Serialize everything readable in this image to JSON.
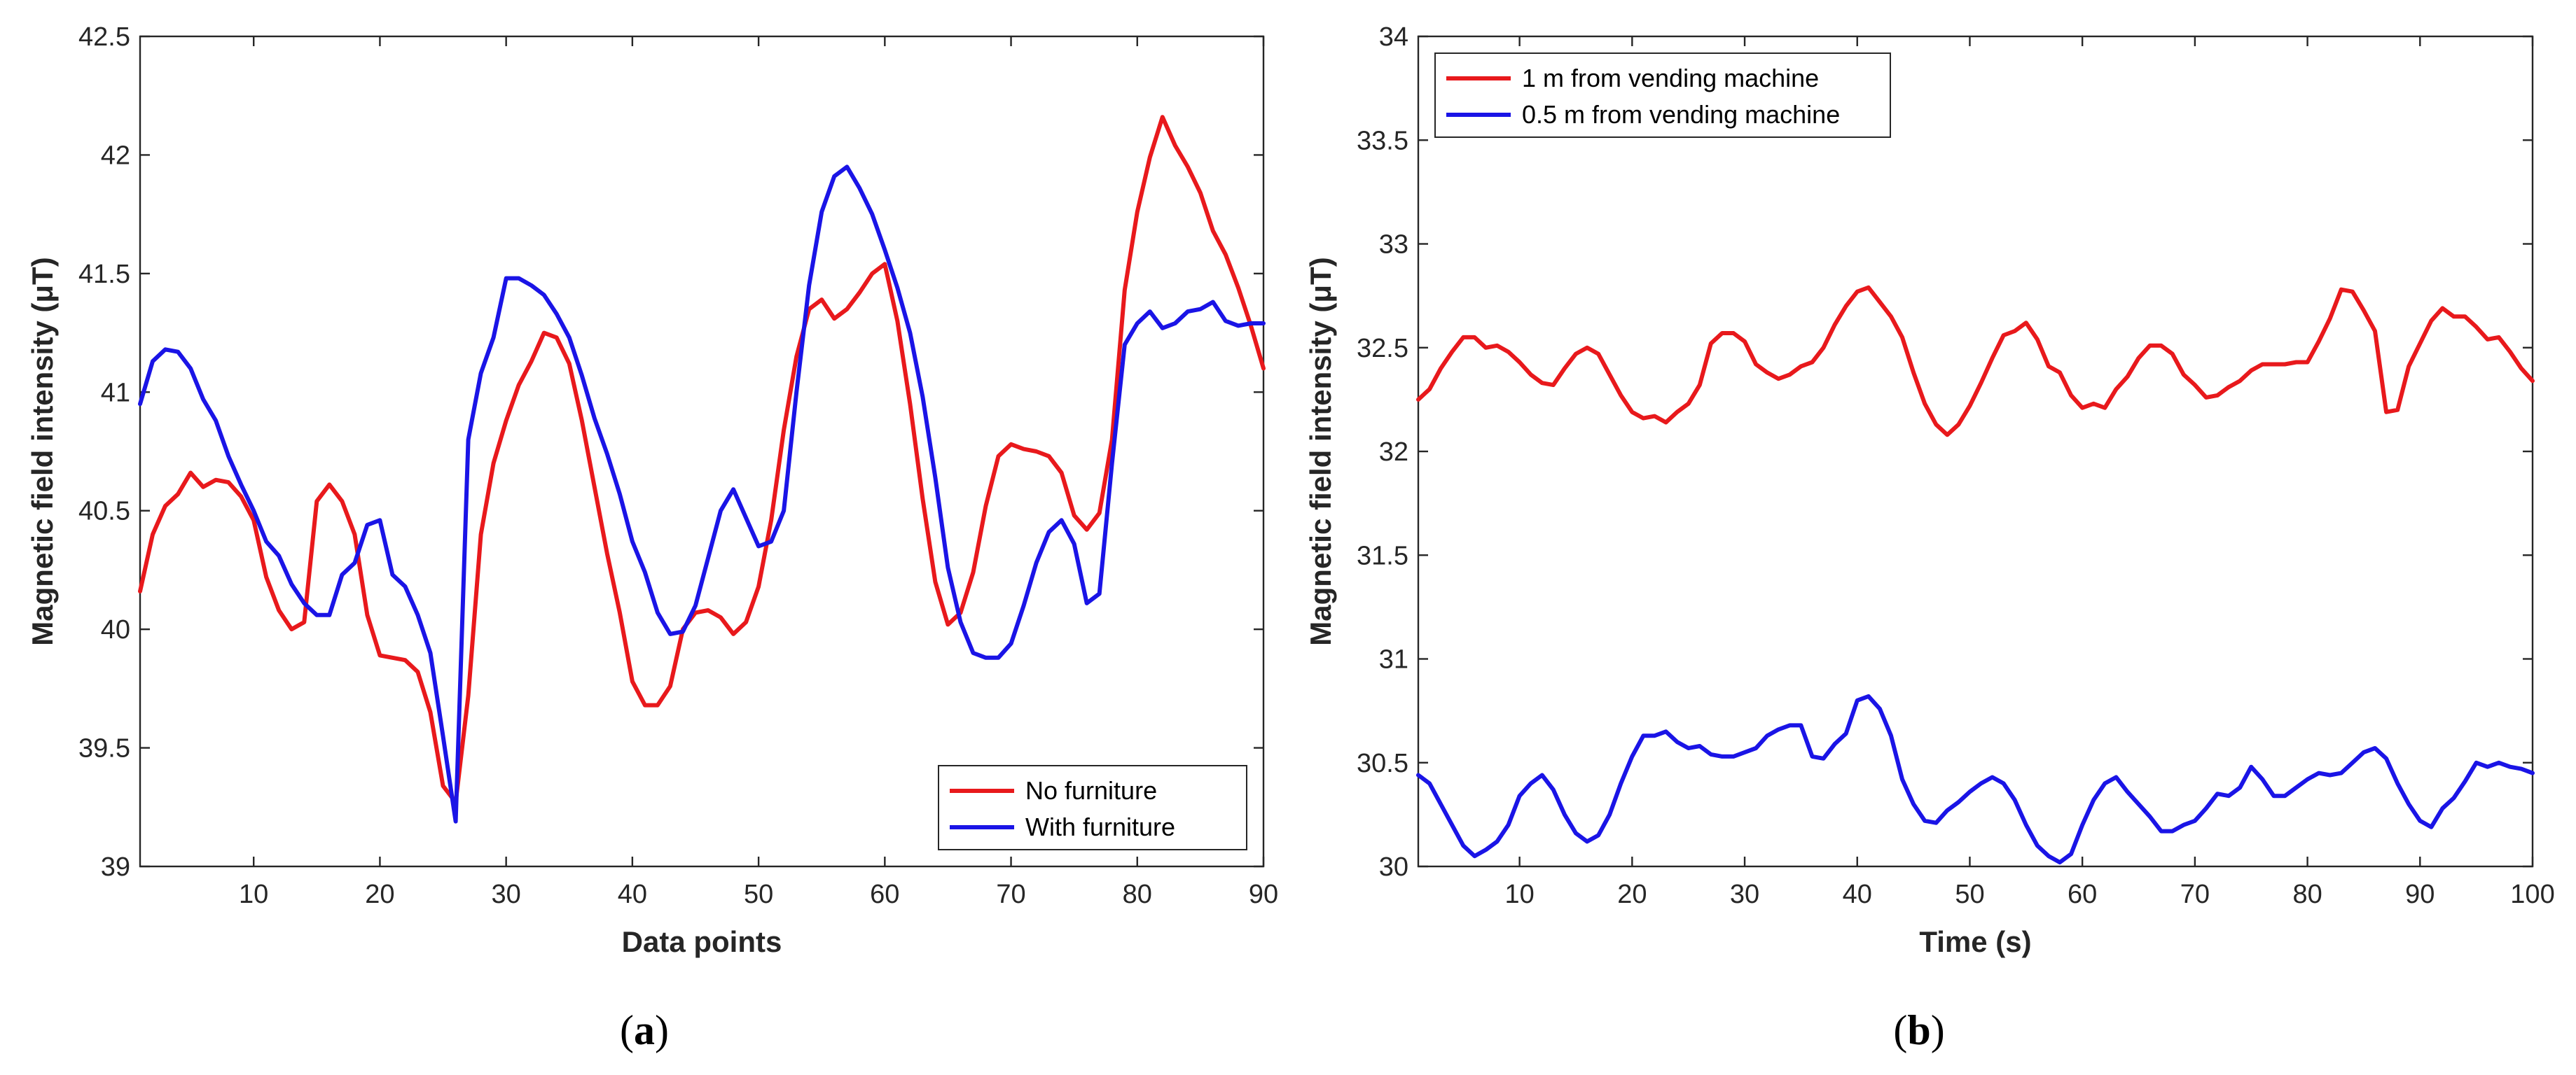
{
  "chart_data": [
    {
      "type": "line",
      "panel_caption": "(a)",
      "caption_open": "(",
      "caption_letter": "a",
      "caption_close": ")",
      "xlabel": "Data points",
      "ylabel": "Magnetic field intensity (μT)",
      "xlim": [
        1,
        90
      ],
      "ylim": [
        39,
        42.5
      ],
      "xticks": [
        10,
        20,
        30,
        40,
        50,
        60,
        70,
        80,
        90
      ],
      "yticks": [
        39,
        39.5,
        40,
        40.5,
        41,
        41.5,
        42,
        42.5
      ],
      "legend_position": "bottom-right",
      "series": [
        {
          "name": "No furniture",
          "color": "#e8191c",
          "x": [
            1,
            2,
            3,
            4,
            5,
            6,
            7,
            8,
            9,
            10,
            11,
            12,
            13,
            14,
            15,
            16,
            17,
            18,
            19,
            20,
            21,
            22,
            23,
            24,
            25,
            26,
            27,
            28,
            29,
            30,
            31,
            32,
            33,
            34,
            35,
            36,
            37,
            38,
            39,
            40,
            41,
            42,
            43,
            44,
            45,
            46,
            47,
            48,
            49,
            50,
            51,
            52,
            53,
            54,
            55,
            56,
            57,
            58,
            59,
            60,
            61,
            62,
            63,
            64,
            65,
            66,
            67,
            68,
            69,
            70,
            71,
            72,
            73,
            74,
            75,
            76,
            77,
            78,
            79,
            80,
            81,
            82,
            83,
            84,
            85,
            86,
            87,
            88,
            89,
            90
          ],
          "values": [
            40.16,
            40.4,
            40.52,
            40.57,
            40.66,
            40.6,
            40.63,
            40.62,
            40.56,
            40.46,
            40.22,
            40.08,
            40,
            40.03,
            40.54,
            40.61,
            40.54,
            40.4,
            40.06,
            39.89,
            39.88,
            39.87,
            39.82,
            39.65,
            39.34,
            39.27,
            39.72,
            40.4,
            40.7,
            40.88,
            41.03,
            41.13,
            41.25,
            41.23,
            41.12,
            40.88,
            40.6,
            40.32,
            40.07,
            39.78,
            39.68,
            39.68,
            39.76,
            40,
            40.07,
            40.08,
            40.05,
            39.98,
            40.03,
            40.18,
            40.46,
            40.84,
            41.15,
            41.35,
            41.39,
            41.31,
            41.35,
            41.42,
            41.5,
            41.54,
            41.3,
            40.95,
            40.55,
            40.2,
            40.02,
            40.07,
            40.24,
            40.52,
            40.73,
            40.78,
            40.76,
            40.75,
            40.73,
            40.66,
            40.48,
            40.42,
            40.49,
            40.8,
            41.43,
            41.76,
            41.99,
            42.16,
            42.04,
            41.95,
            41.84,
            41.68,
            41.58,
            41.44,
            41.28,
            41.1
          ]
        },
        {
          "name": "With furniture",
          "color": "#1a14e6",
          "x": [
            1,
            2,
            3,
            4,
            5,
            6,
            7,
            8,
            9,
            10,
            11,
            12,
            13,
            14,
            15,
            16,
            17,
            18,
            19,
            20,
            21,
            22,
            23,
            24,
            25,
            26,
            27,
            28,
            29,
            30,
            31,
            32,
            33,
            34,
            35,
            36,
            37,
            38,
            39,
            40,
            41,
            42,
            43,
            44,
            45,
            46,
            47,
            48,
            49,
            50,
            51,
            52,
            53,
            54,
            55,
            56,
            57,
            58,
            59,
            60,
            61,
            62,
            63,
            64,
            65,
            66,
            67,
            68,
            69,
            70,
            71,
            72,
            73,
            74,
            75,
            76,
            77,
            78,
            79,
            80,
            81,
            82,
            83,
            84,
            85,
            86,
            87,
            88,
            89,
            90
          ],
          "values": [
            40.95,
            41.13,
            41.18,
            41.17,
            41.1,
            40.97,
            40.88,
            40.73,
            40.61,
            40.5,
            40.37,
            40.31,
            40.19,
            40.11,
            40.06,
            40.06,
            40.23,
            40.28,
            40.44,
            40.46,
            40.23,
            40.18,
            40.06,
            39.9,
            39.55,
            39.19,
            40.8,
            41.08,
            41.23,
            41.48,
            41.48,
            41.45,
            41.41,
            41.33,
            41.23,
            41.07,
            40.89,
            40.74,
            40.57,
            40.37,
            40.24,
            40.07,
            39.98,
            39.99,
            40.1,
            40.3,
            40.5,
            40.59,
            40.47,
            40.35,
            40.37,
            40.5,
            41,
            41.45,
            41.76,
            41.91,
            41.95,
            41.86,
            41.75,
            41.6,
            41.44,
            41.25,
            40.98,
            40.64,
            40.26,
            40.03,
            39.9,
            39.88,
            39.88,
            39.94,
            40.1,
            40.28,
            40.41,
            40.46,
            40.36,
            40.11,
            40.15,
            40.7,
            41.2,
            41.29,
            41.34,
            41.27,
            41.29,
            41.34,
            41.35,
            41.38,
            41.3,
            41.28,
            41.29,
            41.29
          ]
        }
      ]
    },
    {
      "type": "line",
      "panel_caption": "(b)",
      "caption_open": "(",
      "caption_letter": "b",
      "caption_close": ")",
      "xlabel": "Time (s)",
      "ylabel": "Magnetic field intensity (μT)",
      "xlim": [
        1,
        100
      ],
      "ylim": [
        30,
        34
      ],
      "xticks": [
        10,
        20,
        30,
        40,
        50,
        60,
        70,
        80,
        90,
        100
      ],
      "yticks": [
        30,
        30.5,
        31,
        31.5,
        32,
        32.5,
        33,
        33.5,
        34
      ],
      "legend_position": "top-left",
      "series": [
        {
          "name": "1 m from vending machine",
          "color": "#e8191c",
          "x": [
            1,
            2,
            3,
            4,
            5,
            6,
            7,
            8,
            9,
            10,
            11,
            12,
            13,
            14,
            15,
            16,
            17,
            18,
            19,
            20,
            21,
            22,
            23,
            24,
            25,
            26,
            27,
            28,
            29,
            30,
            31,
            32,
            33,
            34,
            35,
            36,
            37,
            38,
            39,
            40,
            41,
            42,
            43,
            44,
            45,
            46,
            47,
            48,
            49,
            50,
            51,
            52,
            53,
            54,
            55,
            56,
            57,
            58,
            59,
            60,
            61,
            62,
            63,
            64,
            65,
            66,
            67,
            68,
            69,
            70,
            71,
            72,
            73,
            74,
            75,
            76,
            77,
            78,
            79,
            80,
            81,
            82,
            83,
            84,
            85,
            86,
            87,
            88,
            89,
            90,
            91,
            92,
            93,
            94,
            95,
            96,
            97,
            98,
            99,
            100
          ],
          "values": [
            32.25,
            32.3,
            32.4,
            32.48,
            32.55,
            32.55,
            32.5,
            32.51,
            32.48,
            32.43,
            32.37,
            32.33,
            32.32,
            32.4,
            32.47,
            32.5,
            32.47,
            32.37,
            32.27,
            32.19,
            32.16,
            32.17,
            32.14,
            32.19,
            32.23,
            32.32,
            32.52,
            32.57,
            32.57,
            32.53,
            32.42,
            32.38,
            32.35,
            32.37,
            32.41,
            32.43,
            32.5,
            32.61,
            32.7,
            32.77,
            32.79,
            32.72,
            32.65,
            32.55,
            32.38,
            32.23,
            32.13,
            32.08,
            32.13,
            32.22,
            32.33,
            32.45,
            32.56,
            32.58,
            32.62,
            32.54,
            32.41,
            32.38,
            32.27,
            32.21,
            32.23,
            32.21,
            32.3,
            32.36,
            32.45,
            32.51,
            32.51,
            32.47,
            32.37,
            32.32,
            32.26,
            32.27,
            32.31,
            32.34,
            32.39,
            32.42,
            32.42,
            32.42,
            32.43,
            32.43,
            32.53,
            32.64,
            32.78,
            32.77,
            32.68,
            32.58,
            32.19,
            32.2,
            32.41,
            32.52,
            32.63,
            32.69,
            32.65,
            32.65,
            32.6,
            32.54,
            32.55,
            32.48,
            32.4,
            32.34
          ]
        },
        {
          "name": "0.5 m from vending machine",
          "color": "#1a14e6",
          "x": [
            1,
            2,
            3,
            4,
            5,
            6,
            7,
            8,
            9,
            10,
            11,
            12,
            13,
            14,
            15,
            16,
            17,
            18,
            19,
            20,
            21,
            22,
            23,
            24,
            25,
            26,
            27,
            28,
            29,
            30,
            31,
            32,
            33,
            34,
            35,
            36,
            37,
            38,
            39,
            40,
            41,
            42,
            43,
            44,
            45,
            46,
            47,
            48,
            49,
            50,
            51,
            52,
            53,
            54,
            55,
            56,
            57,
            58,
            59,
            60,
            61,
            62,
            63,
            64,
            65,
            66,
            67,
            68,
            69,
            70,
            71,
            72,
            73,
            74,
            75,
            76,
            77,
            78,
            79,
            80,
            81,
            82,
            83,
            84,
            85,
            86,
            87,
            88,
            89,
            90,
            91,
            92,
            93,
            94,
            95,
            96,
            97,
            98,
            99,
            100
          ],
          "values": [
            30.44,
            30.4,
            30.3,
            30.2,
            30.1,
            30.05,
            30.08,
            30.12,
            30.2,
            30.34,
            30.4,
            30.44,
            30.37,
            30.25,
            30.16,
            30.12,
            30.15,
            30.25,
            30.4,
            30.53,
            30.63,
            30.63,
            30.65,
            30.6,
            30.57,
            30.58,
            30.54,
            30.53,
            30.53,
            30.55,
            30.57,
            30.63,
            30.66,
            30.68,
            30.68,
            30.53,
            30.52,
            30.59,
            30.64,
            30.8,
            30.82,
            30.76,
            30.63,
            30.42,
            30.3,
            30.22,
            30.21,
            30.27,
            30.31,
            30.36,
            30.4,
            30.43,
            30.4,
            30.32,
            30.2,
            30.1,
            30.05,
            30.02,
            30.06,
            30.2,
            30.32,
            30.4,
            30.43,
            30.36,
            30.3,
            30.24,
            30.17,
            30.17,
            30.2,
            30.22,
            30.28,
            30.35,
            30.34,
            30.38,
            30.48,
            30.42,
            30.34,
            30.34,
            30.38,
            30.42,
            30.45,
            30.44,
            30.45,
            30.5,
            30.55,
            30.57,
            30.52,
            30.4,
            30.3,
            30.22,
            30.19,
            30.28,
            30.33,
            30.41,
            30.5,
            30.48,
            30.5,
            30.48,
            30.47,
            30.45
          ]
        }
      ]
    }
  ]
}
